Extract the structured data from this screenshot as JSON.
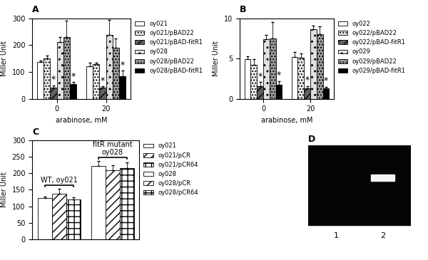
{
  "chart_data": [
    {
      "type": "bar",
      "title": "A",
      "x_label": "arabinose, mM",
      "y_label": "Miller Unit",
      "categories": [
        "0",
        "20"
      ],
      "ylim": [
        0,
        300
      ],
      "yticks": [
        0,
        100,
        200,
        300
      ],
      "legend": "upper left",
      "series": [
        {
          "name": "oy021",
          "color": "#ffffff",
          "values": [
            138,
            122
          ],
          "errors": [
            5,
            12
          ]
        },
        {
          "name": "oy021/pBAD22",
          "color": "#f0f0f0",
          "values": [
            150,
            130
          ],
          "errors": [
            10,
            5
          ]
        },
        {
          "name": "oy021/pBAD-fitR1",
          "color": "#606060",
          "values": [
            42,
            42
          ],
          "errors": [
            8,
            5
          ]
        },
        {
          "name": "oy028",
          "color": "#e0e0e0",
          "values": [
            210,
            238
          ],
          "errors": [
            20,
            55
          ]
        },
        {
          "name": "oy028/pBAD22",
          "color": "#a0a0a0",
          "values": [
            230,
            190
          ],
          "errors": [
            60,
            35
          ]
        },
        {
          "name": "oy028/pBAD-fitR1",
          "color": "#000000",
          "values": [
            55,
            85
          ],
          "errors": [
            8,
            20
          ]
        }
      ],
      "annotations": [
        {
          "text": "*",
          "series": "oy021/pBAD-fitR1",
          "category": "0"
        },
        {
          "text": "*",
          "series": "oy028/pBAD-fitR1",
          "category": "0"
        },
        {
          "text": "*",
          "series": "oy021/pBAD-fitR1",
          "category": "20"
        },
        {
          "text": "*",
          "series": "oy028/pBAD-fitR1",
          "category": "20"
        }
      ]
    },
    {
      "type": "bar",
      "title": "B",
      "x_label": "arabinose, mM",
      "y_label": "Miller Unit",
      "categories": [
        "0",
        "20"
      ],
      "ylim": [
        0,
        10
      ],
      "yticks": [
        0,
        5,
        10
      ],
      "legend": "upper left",
      "series": [
        {
          "name": "oy022",
          "color": "#ffffff",
          "values": [
            4.9,
            5.2
          ],
          "errors": [
            0.4,
            0.6
          ]
        },
        {
          "name": "oy022/pBAD22",
          "color": "#f0f0f0",
          "values": [
            4.2,
            5.1
          ],
          "errors": [
            0.7,
            0.5
          ]
        },
        {
          "name": "oy022/pBAD-fitR1",
          "color": "#606060",
          "values": [
            1.6,
            1.3
          ],
          "errors": [
            0.5,
            0.3
          ]
        },
        {
          "name": "oy029",
          "color": "#e0e0e0",
          "values": [
            7.4,
            8.6
          ],
          "errors": [
            0.5,
            0.5
          ]
        },
        {
          "name": "oy029/pBAD22",
          "color": "#a0a0a0",
          "values": [
            7.5,
            8.0
          ],
          "errors": [
            2.0,
            1.0
          ]
        },
        {
          "name": "oy029/pBAD-fitR1",
          "color": "#000000",
          "values": [
            1.7,
            1.3
          ],
          "errors": [
            0.5,
            0.2
          ]
        }
      ],
      "annotations": [
        {
          "text": "*",
          "series": "oy022/pBAD-fitR1",
          "category": "0"
        },
        {
          "text": "*",
          "series": "oy029/pBAD-fitR1",
          "category": "0"
        },
        {
          "text": "*",
          "series": "oy022/pBAD-fitR1",
          "category": "20"
        },
        {
          "text": "*",
          "series": "oy029/pBAD-fitR1",
          "category": "20"
        }
      ]
    },
    {
      "type": "bar",
      "title": "C",
      "y_label": "Miller Unit",
      "tick_labels": "y",
      "categories": [
        "WT, oy021",
        "fitR mutant\noy028"
      ],
      "ylim": [
        0,
        300
      ],
      "yticks": [
        0,
        50,
        100,
        150,
        200,
        250,
        300
      ],
      "legend": "upper left",
      "series": [
        {
          "name": "oy021",
          "color": "#ffffff",
          "values": [
            125,
            null
          ],
          "errors": [
            5,
            null
          ]
        },
        {
          "name": "oy021/pCR",
          "color": "#ffffff",
          "values": [
            138,
            null
          ],
          "errors": [
            15,
            null
          ]
        },
        {
          "name": "oy021/pCR64",
          "color": "#ffffff",
          "values": [
            120,
            null
          ],
          "errors": [
            8,
            null
          ]
        },
        {
          "name": "oy028",
          "color": "#ffffff",
          "values": [
            null,
            222
          ],
          "errors": [
            null,
            15
          ]
        },
        {
          "name": "oy028/pCR",
          "color": "#ffffff",
          "values": [
            null,
            210
          ],
          "errors": [
            null,
            15
          ]
        },
        {
          "name": "oy028/pCR64",
          "color": "#ffffff",
          "values": [
            null,
            215
          ],
          "errors": [
            null,
            18
          ]
        }
      ]
    },
    {
      "type": "gel",
      "title": "D",
      "categories": [
        "1",
        "2"
      ],
      "values": [
        0,
        1
      ]
    }
  ]
}
